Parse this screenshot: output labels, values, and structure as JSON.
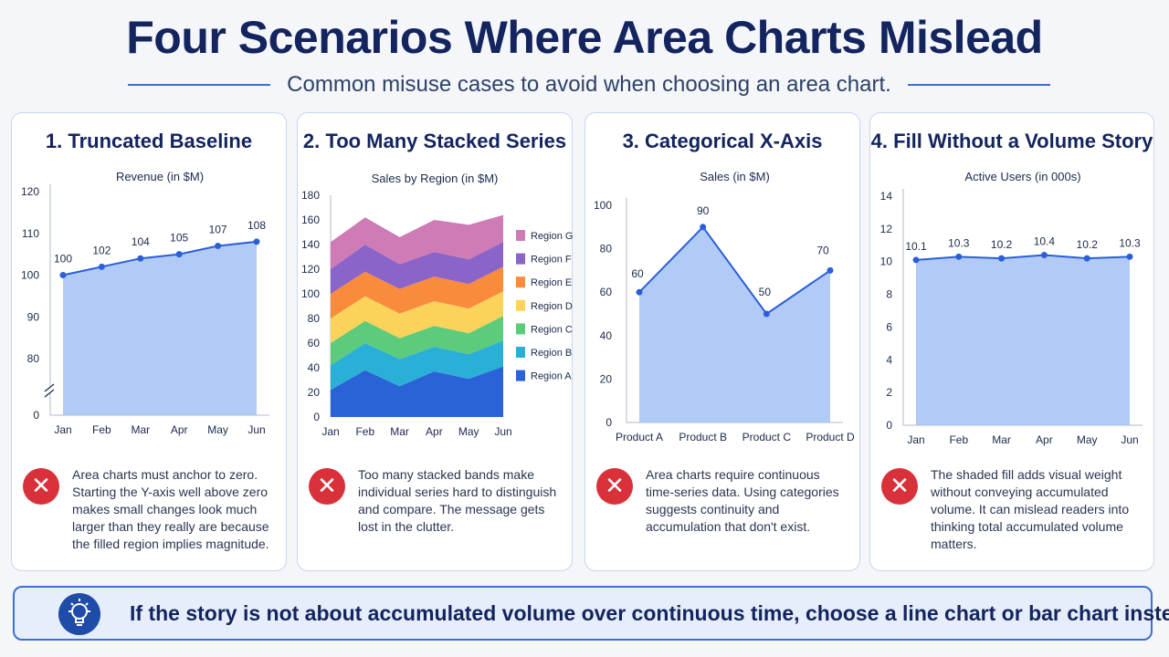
{
  "title": "Four Scenarios Where Area Charts Mislead",
  "subtitle": "Common misuse cases to avoid when choosing an area chart.",
  "colors": {
    "accent": "#3d6fd1",
    "area_fill": "#a5c2f5",
    "line": "#2b5fd8",
    "error": "#d9313a"
  },
  "panels": [
    {
      "heading": "1. Truncated Baseline",
      "note": "Area charts must anchor to zero. Starting the Y-axis well above zero makes small changes look much larger than they really are because the filled region implies magnitude.",
      "icon": "x-circle-icon"
    },
    {
      "heading": "2. Too Many Stacked Series",
      "note": "Too many stacked bands make individual series hard to distinguish and compare. The message gets lost in the clutter.",
      "icon": "x-circle-icon"
    },
    {
      "heading": "3. Categorical X-Axis",
      "note": "Area charts require continuous time-series data. Using categories suggests continuity and accumulation that don't exist.",
      "icon": "x-circle-icon"
    },
    {
      "heading": "4. Fill Without a Volume Story",
      "note": "The shaded fill adds visual weight without conveying accumulated volume. It can mislead readers into thinking total accumulated volume matters.",
      "icon": "x-circle-icon"
    }
  ],
  "footer": {
    "text": "If the story is not about accumulated volume over continuous time, choose a line chart or bar chart instead.",
    "icon": "lightbulb-icon"
  },
  "chart_data": [
    {
      "type": "area",
      "title": "Revenue (in $M)",
      "categories": [
        "Jan",
        "Feb",
        "Mar",
        "Apr",
        "May",
        "Jun"
      ],
      "values": [
        100,
        102,
        104,
        105,
        107,
        108
      ],
      "data_labels": [
        "100",
        "102",
        "104",
        "105",
        "107",
        "108"
      ],
      "yticks": [
        "120",
        "110",
        "100",
        "90",
        "80",
        "0"
      ],
      "ylim": [
        0,
        120
      ],
      "axis_break": true,
      "grid": false
    },
    {
      "type": "area",
      "stacked": true,
      "title": "Sales by Region (in $M)",
      "categories": [
        "Jan",
        "Feb",
        "Mar",
        "Apr",
        "May",
        "Jun"
      ],
      "yticks": [
        0,
        20,
        40,
        60,
        80,
        100,
        120,
        140,
        160,
        180
      ],
      "ylim": [
        0,
        180
      ],
      "legend_position": "right",
      "series": [
        {
          "name": "Region A",
          "color": "#2a63d8",
          "values": [
            22,
            38,
            25,
            37,
            31,
            41
          ]
        },
        {
          "name": "Region B",
          "color": "#2ab0d6",
          "values": [
            20,
            22,
            22,
            20,
            20,
            21
          ]
        },
        {
          "name": "Region C",
          "color": "#5ccb7c",
          "values": [
            18,
            18,
            17,
            17,
            17,
            20
          ]
        },
        {
          "name": "Region D",
          "color": "#fbd35a",
          "values": [
            20,
            20,
            20,
            20,
            20,
            20
          ]
        },
        {
          "name": "Region E",
          "color": "#f98b3d",
          "values": [
            20,
            20,
            20,
            20,
            20,
            20
          ]
        },
        {
          "name": "Region F",
          "color": "#8a64c8",
          "values": [
            20,
            22,
            20,
            20,
            20,
            20
          ]
        },
        {
          "name": "Region G",
          "color": "#cf7bb6",
          "values": [
            22,
            22,
            22,
            26,
            28,
            22
          ]
        }
      ]
    },
    {
      "type": "area",
      "title": "Sales (in $M)",
      "categories": [
        "Product A",
        "Product B",
        "Product C",
        "Product D"
      ],
      "values": [
        60,
        90,
        50,
        70
      ],
      "data_labels": [
        "60",
        "90",
        "50",
        "70"
      ],
      "yticks": [
        0,
        20,
        40,
        60,
        80,
        100
      ],
      "ylim": [
        0,
        100
      ],
      "grid": false
    },
    {
      "type": "area",
      "title": "Active Users (in 000s)",
      "categories": [
        "Jan",
        "Feb",
        "Mar",
        "Apr",
        "May",
        "Jun"
      ],
      "values": [
        10.1,
        10.3,
        10.2,
        10.4,
        10.2,
        10.3
      ],
      "data_labels": [
        "10.1",
        "10.3",
        "10.2",
        "10.4",
        "10.2",
        "10.3"
      ],
      "yticks": [
        0,
        2,
        4,
        6,
        8,
        10,
        12,
        14
      ],
      "ylim": [
        0,
        14
      ],
      "grid": false
    }
  ]
}
